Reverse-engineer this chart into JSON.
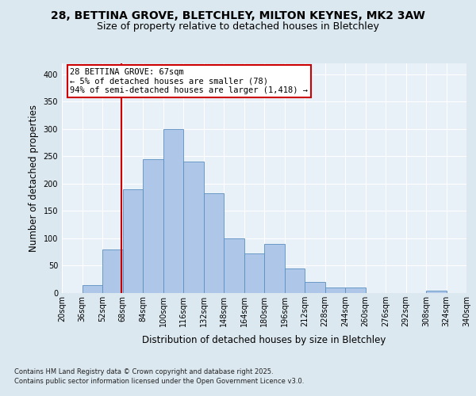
{
  "title_line1": "28, BETTINA GROVE, BLETCHLEY, MILTON KEYNES, MK2 3AW",
  "title_line2": "Size of property relative to detached houses in Bletchley",
  "xlabel": "Distribution of detached houses by size in Bletchley",
  "ylabel": "Number of detached properties",
  "bin_edges": [
    20,
    36,
    52,
    68,
    84,
    100,
    116,
    132,
    148,
    164,
    180,
    196,
    212,
    228,
    244,
    260,
    276,
    292,
    308,
    324,
    340
  ],
  "bar_heights": [
    0,
    15,
    80,
    190,
    245,
    300,
    240,
    183,
    100,
    73,
    90,
    45,
    20,
    10,
    10,
    0,
    0,
    0,
    5,
    0
  ],
  "bar_color": "#aec6e8",
  "bar_edge_color": "#5a8fc0",
  "property_size": 67,
  "annotation_title": "28 BETTINA GROVE: 67sqm",
  "annotation_line1": "← 5% of detached houses are smaller (78)",
  "annotation_line2": "94% of semi-detached houses are larger (1,418) →",
  "vline_color": "#cc0000",
  "ylim": [
    0,
    420
  ],
  "yticks": [
    0,
    50,
    100,
    150,
    200,
    250,
    300,
    350,
    400
  ],
  "footnote_line1": "Contains HM Land Registry data © Crown copyright and database right 2025.",
  "footnote_line2": "Contains public sector information licensed under the Open Government Licence v3.0.",
  "bg_color": "#dce8f0",
  "plot_bg_color": "#e8f0f8",
  "grid_color": "#ffffff",
  "title_fontsize": 10,
  "subtitle_fontsize": 9,
  "label_fontsize": 8.5,
  "tick_fontsize": 7,
  "annotation_fontsize": 7.5,
  "footnote_fontsize": 6
}
